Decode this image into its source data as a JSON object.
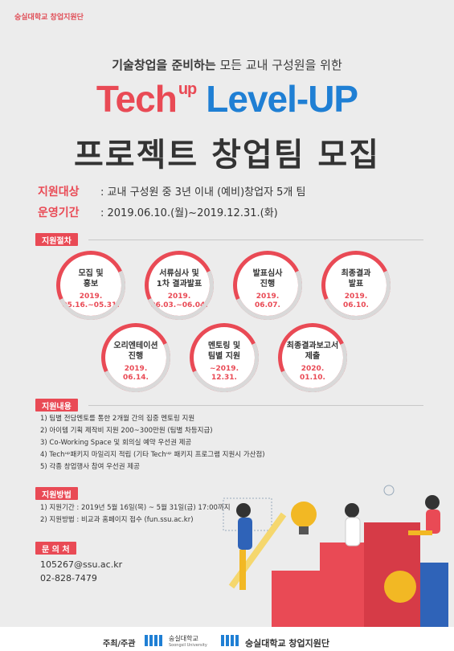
{
  "org_top": "숭실대학교 창업지원단",
  "subtitle": {
    "bold": "기술창업을 준비하는",
    "rest": " 모든 교내 구성원을 위한"
  },
  "title": {
    "tech": "Tech",
    "up": "up",
    "level": "Level-UP",
    "line2": "프로젝트 창업팀 모집"
  },
  "info": [
    {
      "key": "지원대상",
      "value": ": 교내 구성원 중 3년 이내 (예비)창업자 5개 팀"
    },
    {
      "key": "운영기간",
      "value": ": 2019.06.10.(월)~2019.12.31.(화)"
    }
  ],
  "sections": {
    "process": "지원절차",
    "content": "지원내용",
    "method": "지원방법",
    "contact": "문 의 처"
  },
  "steps": [
    {
      "name": "모집 및\n홍보",
      "date": "2019.\n05.16.~05.31."
    },
    {
      "name": "서류심사 및\n1차 결과발표",
      "date": "2019.\n06.03.~06.04."
    },
    {
      "name": "발표심사\n진행",
      "date": "2019.\n06.07."
    },
    {
      "name": "최종결과\n발표",
      "date": "2019.\n06.10."
    },
    {
      "name": "오리엔테이션\n진행",
      "date": "2019.\n06.14."
    },
    {
      "name": "멘토링 및\n팀별 지원",
      "date": "~2019.\n12.31."
    },
    {
      "name": "최종결과보고서\n제출",
      "date": "2020.\n01.10."
    }
  ],
  "content_items": [
    "1) 팀별 전담멘토를 통한 2개월 간의 집중 멘토링 지원",
    "2) 아이템 기획 제작비 지원 200~300만원 (팀별 차등지급)",
    "3) Co-Working Space 및 회의실 예약 우선권 제공",
    "4) Techᵘᵖ패키지 마일리지 적립 (기타 Techᵘᵖ 패키지 프로그램 지원시 가산점)",
    "5) 각종 창업행사 참여 우선권 제공"
  ],
  "method_items": [
    "1) 지원기간 : 2019년 5월 16일(목) ~ 5월 31일(금) 17:00까지",
    "2) 지원방법 : 비교과 홈페이지 접수 (fun.ssu.ac.kr)"
  ],
  "contact_items": [
    "105267@ssu.ac.kr",
    "02-828-7479"
  ],
  "footer": {
    "host": "주최/주관",
    "univ1": "숭실대학교",
    "univ1_en": "Soongsil University",
    "univ2": "숭실대학교 창업지원단"
  },
  "colors": {
    "accent": "#e94a55",
    "blue": "#1f7fd4",
    "bg": "#ececec"
  }
}
